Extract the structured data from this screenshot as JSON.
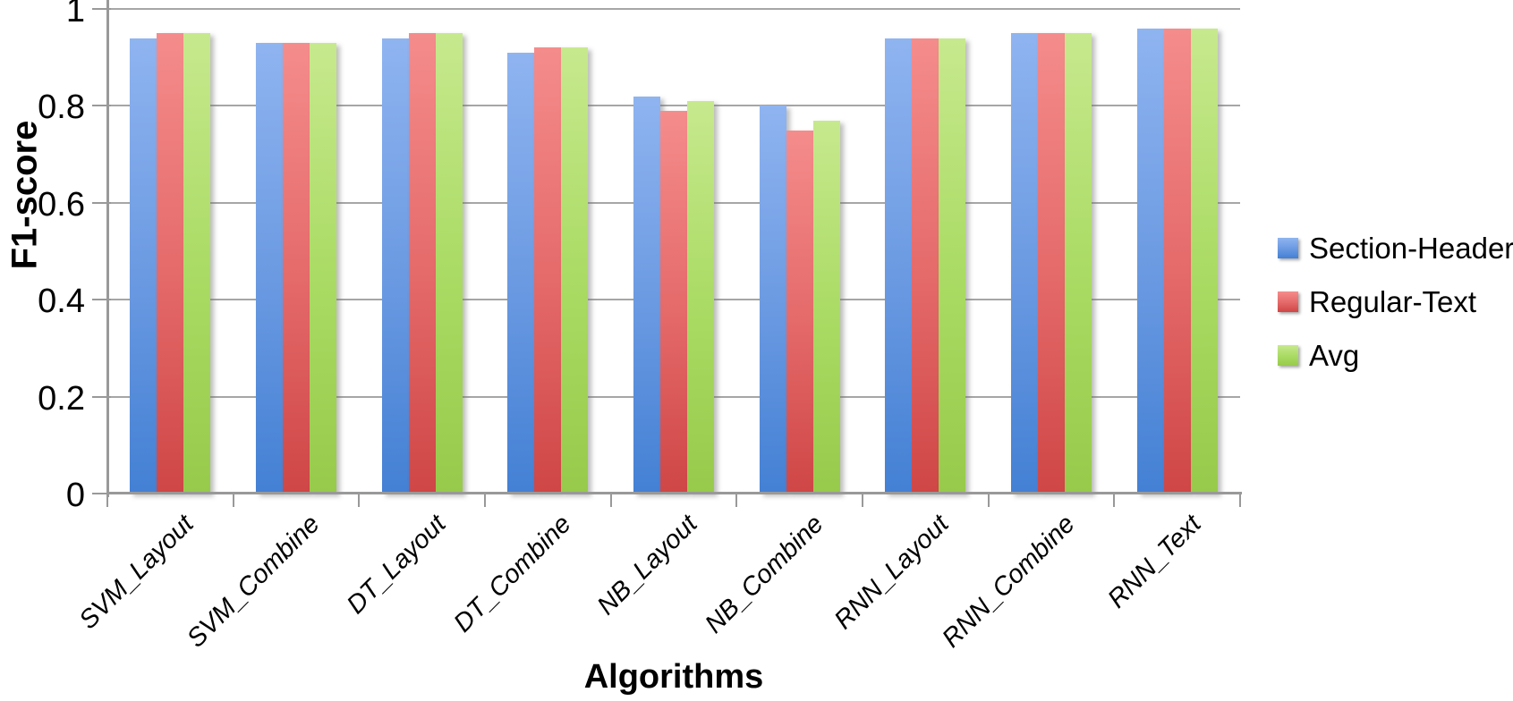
{
  "chart_data": {
    "type": "bar",
    "title": "",
    "xlabel": "Algorithms",
    "ylabel": "F1-score",
    "ylim": [
      0,
      1
    ],
    "yticks": [
      0,
      0.2,
      0.4,
      0.6,
      0.8,
      1
    ],
    "ytick_labels": [
      "0",
      "0.2",
      "0.4",
      "0.6",
      "0.8",
      "1"
    ],
    "grid": true,
    "legend_position": "right",
    "categories": [
      "SVM_Layout",
      "SVM_Combine",
      "DT_Layout",
      "DT_Combine",
      "NB_Layout",
      "NB_Combine",
      "RNN_Layout",
      "RNN_Combine",
      "RNN_Text"
    ],
    "series": [
      {
        "name": "Section-Header",
        "color": "#6b9ae2",
        "fill": {
          "top": "#8fb4f0",
          "mid": "#6b9ae2",
          "bottom": "#4380d4"
        },
        "values": [
          0.94,
          0.93,
          0.94,
          0.91,
          0.82,
          0.8,
          0.94,
          0.95,
          0.96
        ]
      },
      {
        "name": "Regular-Text",
        "color": "#e56a6a",
        "fill": {
          "top": "#f58c8c",
          "mid": "#e56a6a",
          "bottom": "#cf4646"
        },
        "values": [
          0.95,
          0.93,
          0.95,
          0.92,
          0.79,
          0.75,
          0.94,
          0.95,
          0.96
        ]
      },
      {
        "name": "Avg",
        "color": "#aadb64",
        "fill": {
          "top": "#c7e98e",
          "mid": "#aadb64",
          "bottom": "#97ca4b"
        },
        "values": [
          0.95,
          0.93,
          0.95,
          0.92,
          0.81,
          0.77,
          0.94,
          0.95,
          0.96
        ]
      }
    ]
  },
  "colors": {
    "gridline": "#a6a6a6",
    "axis": "#999999",
    "text": "#000000"
  }
}
